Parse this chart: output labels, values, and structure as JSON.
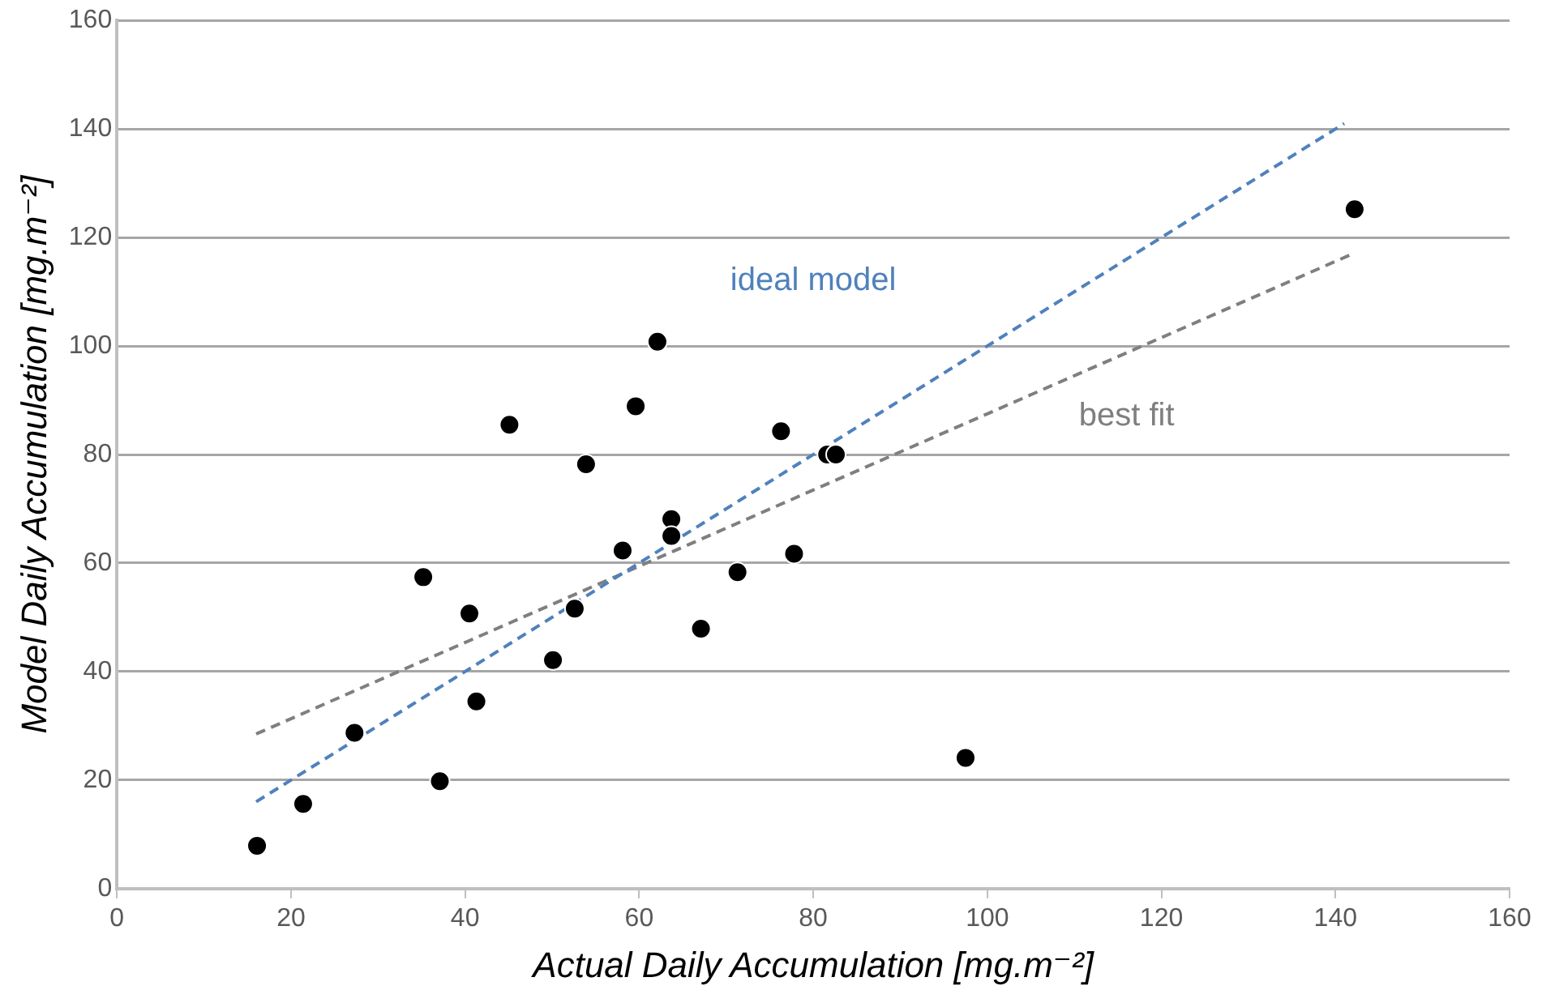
{
  "chart_data": {
    "type": "scatter",
    "xlabel": "Actual Daily Accumulation [mg.m⁻²]",
    "ylabel": "Model Daily Accumulation [mg.m⁻²]",
    "xlim": [
      0,
      160
    ],
    "xticks": [
      0,
      20,
      40,
      60,
      80,
      100,
      120,
      140,
      160
    ],
    "ylim": [
      0,
      160
    ],
    "yticks": [
      0,
      20,
      40,
      60,
      80,
      100,
      120,
      140,
      160
    ],
    "grid": "y",
    "legend": false,
    "series": [
      {
        "color": "#000000",
        "marker": "circle",
        "x": [
          16.1,
          21.4,
          27.3,
          35.2,
          37.1,
          40.5,
          41.3,
          45.1,
          50.1,
          52.6,
          53.9,
          58.1,
          59.6,
          62.1,
          63.7,
          63.7,
          67.1,
          71.3,
          76.3,
          77.8,
          81.6,
          82.6,
          97.5,
          142.2
        ],
        "values": [
          7.9,
          15.6,
          28.7,
          57.4,
          19.8,
          50.7,
          34.5,
          85.5,
          42.1,
          51.6,
          78.2,
          62.3,
          88.9,
          100.8,
          68.1,
          65.0,
          47.9,
          58.3,
          84.3,
          61.7,
          80.0,
          80.0,
          24.1,
          125.2
        ]
      },
      {
        "type": "line",
        "color": "#4f81bd",
        "line_style": "dashed",
        "marker": "none",
        "x": [
          16,
          141
        ],
        "values": [
          16,
          141
        ]
      },
      {
        "type": "line",
        "color": "#7f7f7f",
        "line_style": "dashed",
        "marker": "none",
        "x": [
          16,
          142
        ],
        "values": [
          28.5,
          117
        ]
      }
    ],
    "annotations": [
      "ideal model",
      "best fit"
    ]
  }
}
